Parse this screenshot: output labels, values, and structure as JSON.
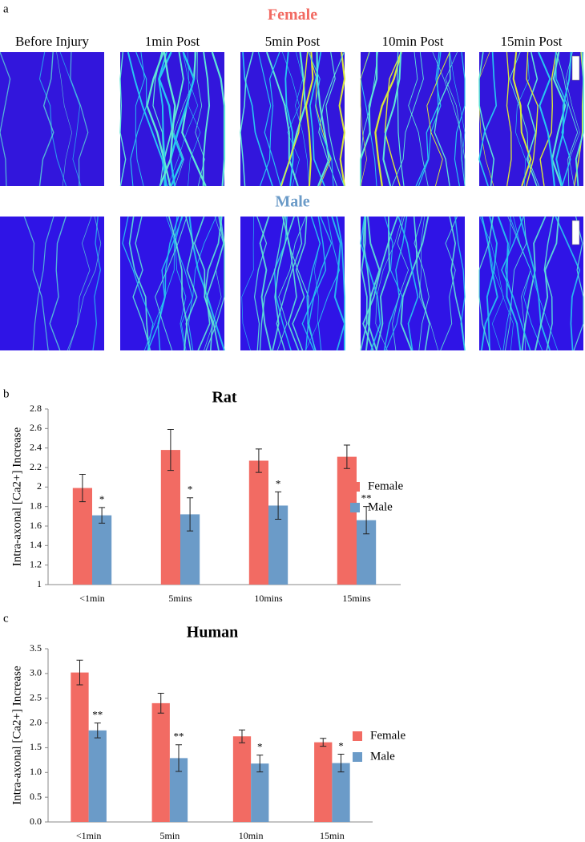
{
  "figure": {
    "panel_labels": [
      "a",
      "b",
      "c"
    ],
    "group_titles": [
      "Female",
      "Male"
    ],
    "column_labels": [
      "Before Injury",
      "1min Post",
      "5min Post",
      "10min Post",
      "15min Post"
    ]
  },
  "chart_data": [
    {
      "type": "bar",
      "title": "Rat",
      "ylabel": "Intra-axonal [Ca2+] Increase",
      "categories": [
        "<1min",
        "5mins",
        "10mins",
        "15mins"
      ],
      "series": [
        {
          "name": "Female",
          "color": "#f26b63",
          "values": [
            1.99,
            2.38,
            2.27,
            2.31
          ],
          "errors": [
            0.14,
            0.21,
            0.12,
            0.12
          ]
        },
        {
          "name": "Male",
          "color": "#6b9bc8",
          "values": [
            1.71,
            1.72,
            1.81,
            1.66
          ],
          "errors": [
            0.08,
            0.17,
            0.14,
            0.14
          ],
          "annotations": [
            "*",
            "*",
            "*",
            "**"
          ]
        }
      ],
      "ylim": [
        1,
        2.8
      ],
      "yticks": [
        1,
        1.2,
        1.4,
        1.6,
        1.8,
        2,
        2.2,
        2.4,
        2.6,
        2.8
      ],
      "legend": "right"
    },
    {
      "type": "bar",
      "title": "Human",
      "ylabel": "Intra-axonal [Ca2+] Increase",
      "categories": [
        "<1min",
        "5min",
        "10min",
        "15min"
      ],
      "series": [
        {
          "name": "Female",
          "color": "#f26b63",
          "values": [
            3.02,
            2.4,
            1.73,
            1.61
          ],
          "errors": [
            0.25,
            0.2,
            0.13,
            0.08
          ]
        },
        {
          "name": "Male",
          "color": "#6b9bc8",
          "values": [
            1.85,
            1.29,
            1.18,
            1.19
          ],
          "errors": [
            0.15,
            0.27,
            0.17,
            0.18
          ],
          "annotations": [
            "**",
            "**",
            "*",
            "*"
          ]
        }
      ],
      "ylim": [
        0,
        3.5
      ],
      "yticks": [
        {
          "value": 0,
          "label": "0.0"
        },
        {
          "value": 0.5,
          "label": "0.5"
        },
        {
          "value": 1,
          "label": "1.0"
        },
        {
          "value": 1.5,
          "label": "1.5"
        },
        {
          "value": 2,
          "label": "2.0"
        },
        {
          "value": 2.5,
          "label": "2.5"
        },
        {
          "value": 3,
          "label": "3.0"
        },
        {
          "value": 3.5,
          "label": "3.5"
        }
      ],
      "legend": "right"
    }
  ]
}
